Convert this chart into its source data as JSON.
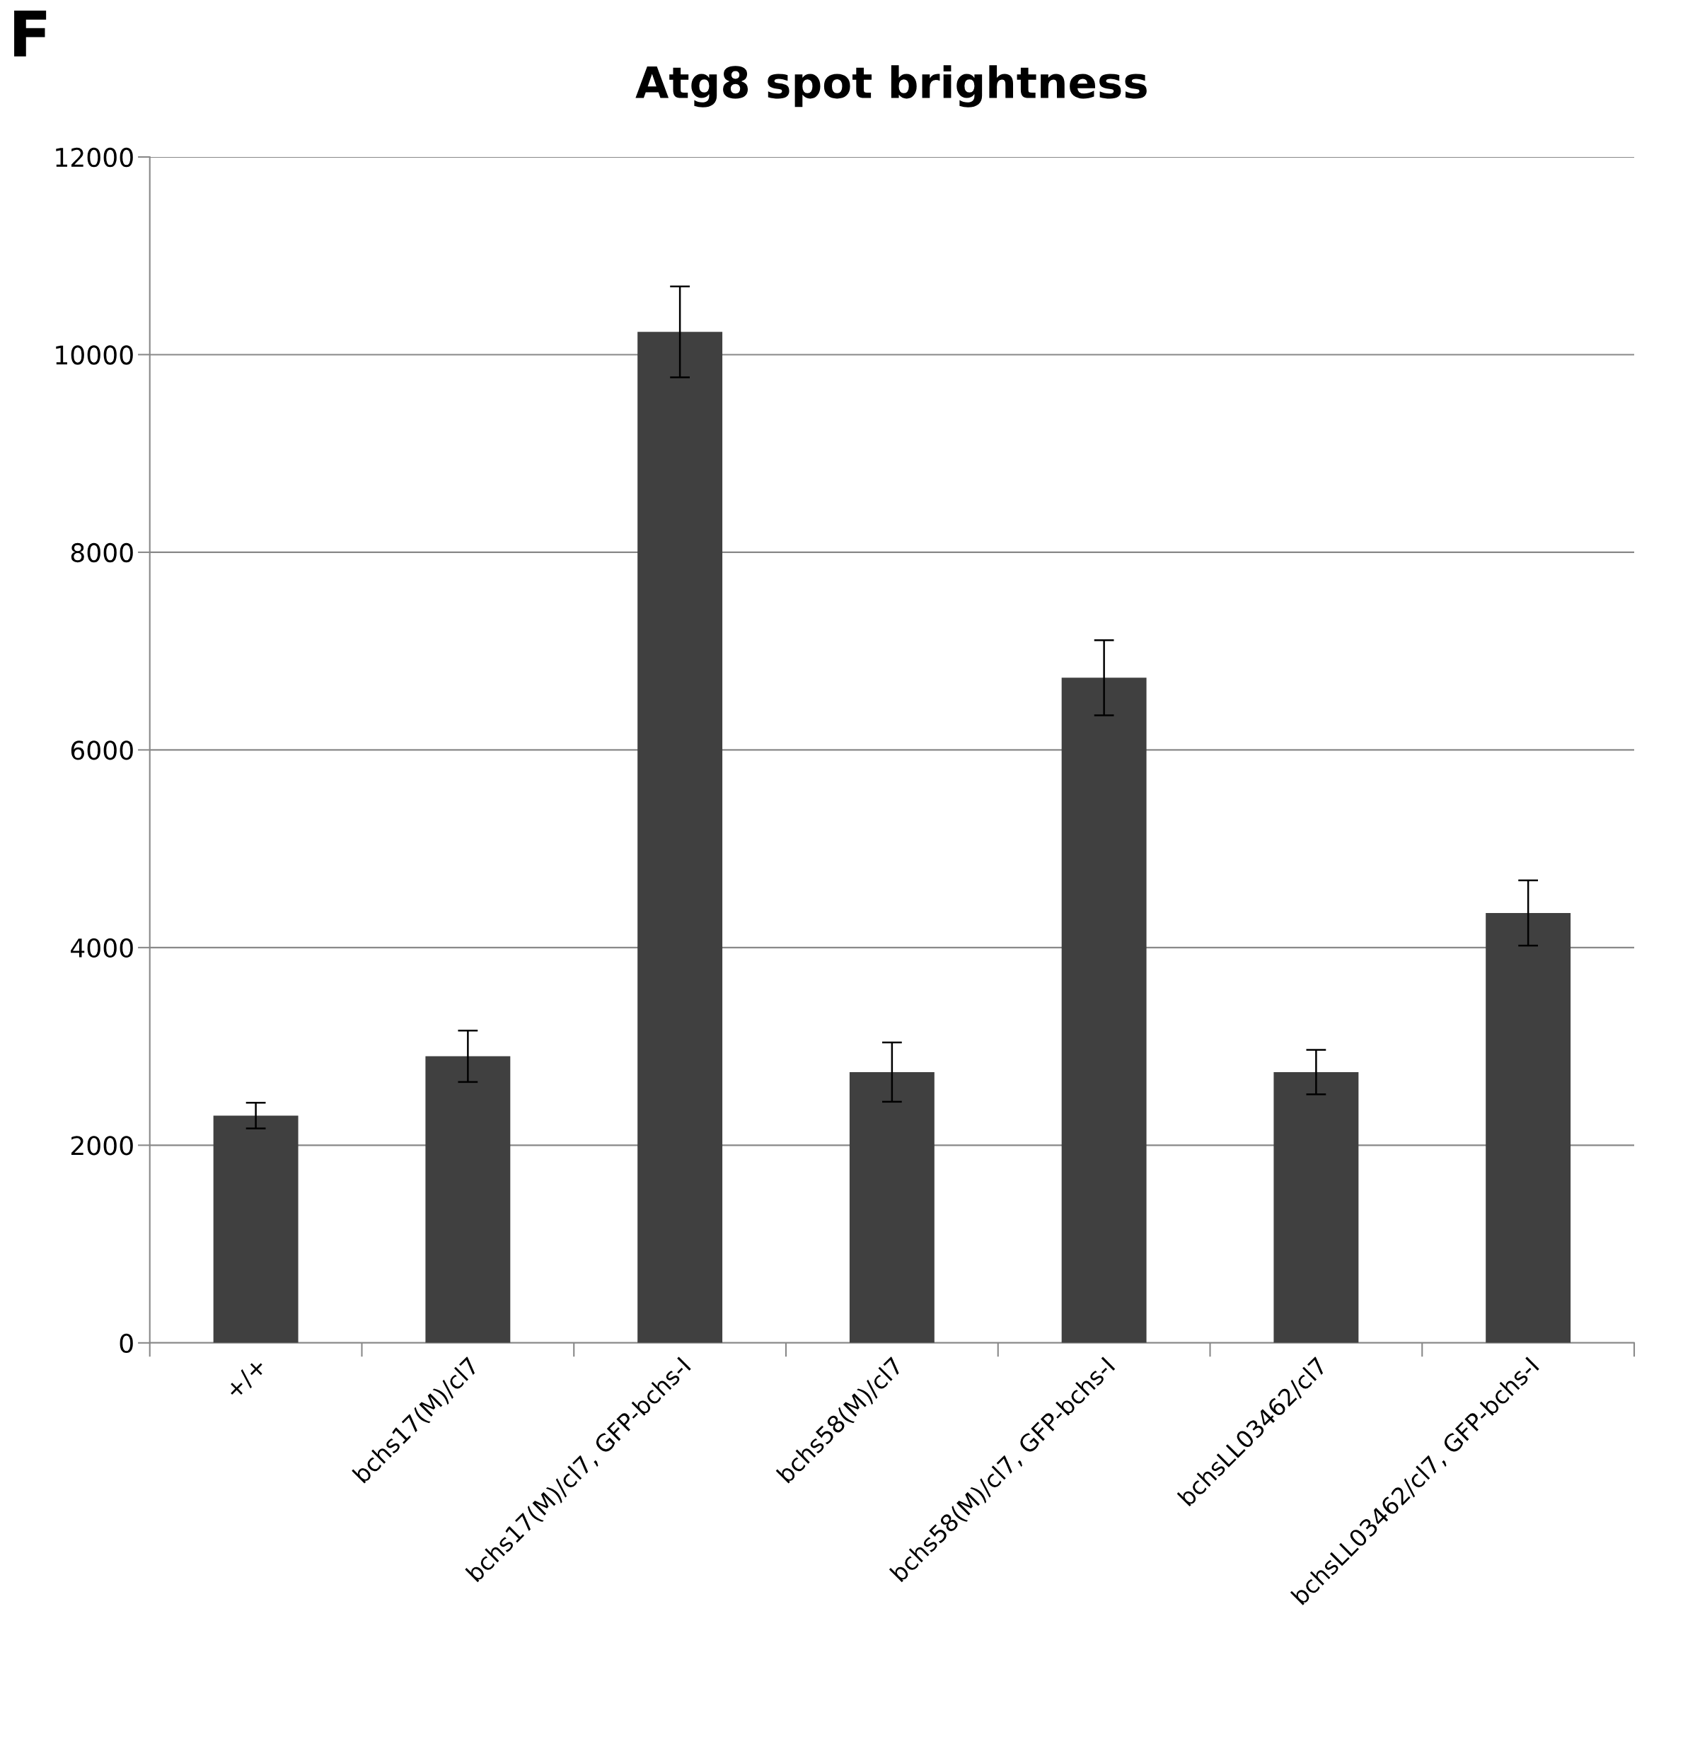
{
  "chart_data": {
    "type": "bar",
    "title": "Atg8 spot brightness",
    "annotations": [
      "F"
    ],
    "categories": [
      "+/+",
      "bchs17(M)/cl7",
      "bchs17(M)/cl7, GFP-bchs-I",
      "bchs58(M)/cl7",
      "bchs58(M)/cl7, GFP-bchs-I",
      "bchsLL03462/cl7",
      "bchsLL03462/cl7, GFP-bchs-I"
    ],
    "values": [
      2300,
      2900,
      10230,
      2740,
      6730,
      2740,
      4350
    ],
    "errors": [
      130,
      260,
      460,
      300,
      380,
      225,
      330
    ],
    "color": "#404040",
    "ylim": [
      0,
      12000
    ],
    "yticks": [
      0,
      2000,
      4000,
      6000,
      8000,
      10000,
      12000
    ],
    "grid": "y"
  }
}
